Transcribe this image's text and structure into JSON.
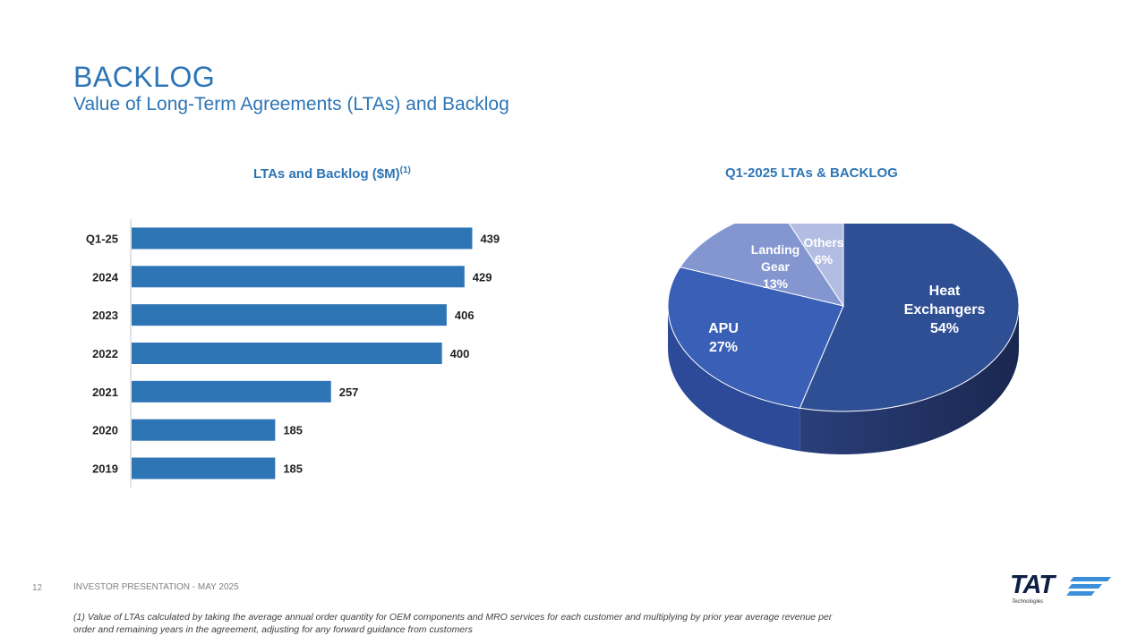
{
  "header": {
    "title": "BACKLOG",
    "subtitle": "Value of Long-Term Agreements (LTAs) and Backlog"
  },
  "bar_chart": {
    "title": "LTAs and Backlog ($M)",
    "title_superscript": "(1)"
  },
  "pie_chart": {
    "title": "Q1-2025 LTAs & BACKLOG"
  },
  "chart_data": [
    {
      "type": "bar",
      "orientation": "horizontal",
      "title": "LTAs and Backlog ($M)(1)",
      "categories": [
        "Q1-25",
        "2024",
        "2023",
        "2022",
        "2021",
        "2020",
        "2019"
      ],
      "values": [
        439,
        429,
        406,
        400,
        257,
        185,
        185
      ],
      "xlim": [
        0,
        450
      ],
      "grid": false,
      "color": "#2e75b6"
    },
    {
      "type": "pie",
      "title": "Q1-2025 LTAs & BACKLOG",
      "labels": [
        "Heat Exchangers",
        "APU",
        "Landing Gear",
        "Others"
      ],
      "values": [
        54,
        27,
        13,
        6
      ],
      "value_labels": [
        "54%",
        "27%",
        "13%",
        "6%"
      ],
      "colors": [
        "#2f4f95",
        "#3a5fb6",
        "#8496d0",
        "#b3bde3"
      ],
      "style": "3d"
    }
  ],
  "footer": {
    "page_number": "12",
    "label": "INVESTOR PRESENTATION   -   MAY 2025",
    "footnote": "(1) Value of LTAs calculated by taking the average annual order quantity for OEM components and MRO services for each customer and multiplying by prior year average revenue per order and remaining years in the agreement, adjusting for any forward guidance from customers"
  },
  "logo": {
    "text": "TAT",
    "subtext": "Technologies"
  }
}
